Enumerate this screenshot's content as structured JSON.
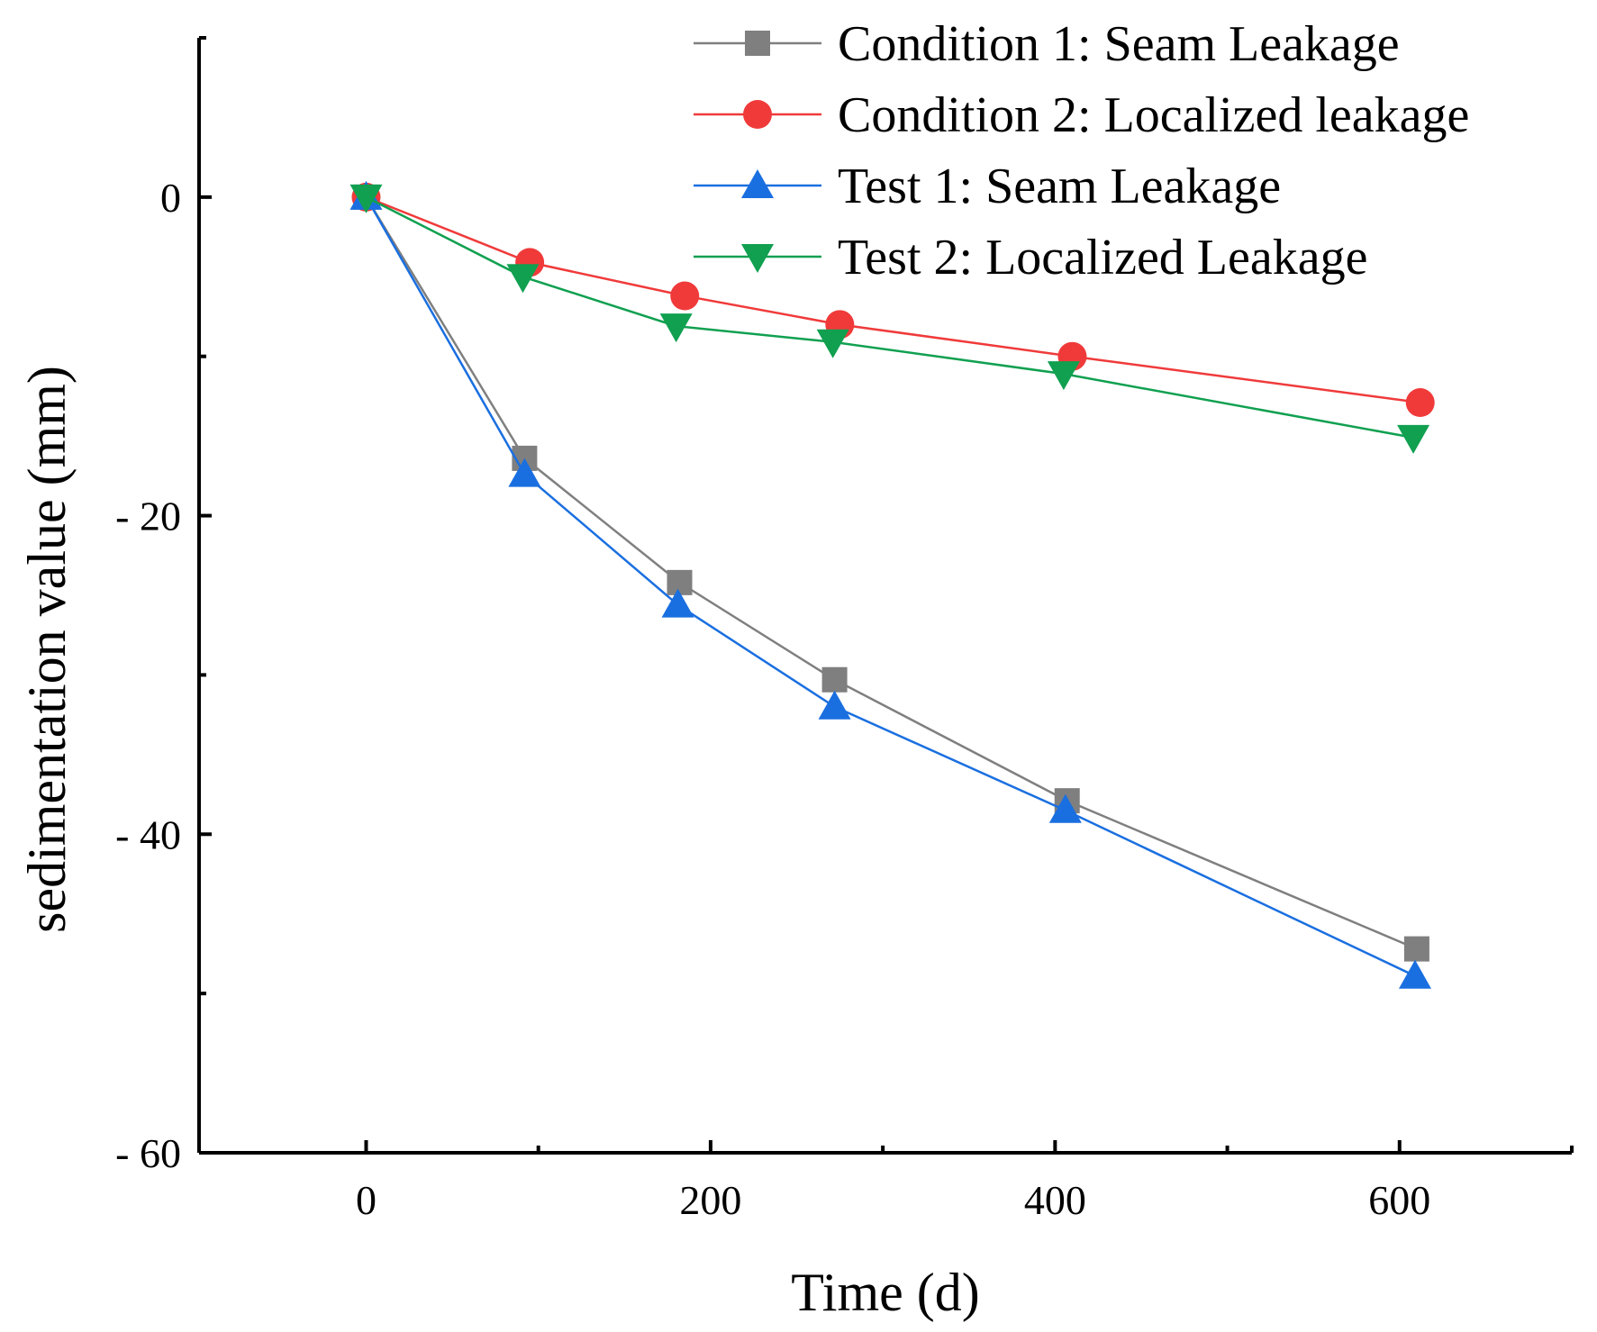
{
  "chart_data": {
    "type": "line",
    "title": "",
    "xlabel": "Time (d)",
    "ylabel": "sedimentation value (mm)",
    "xlim": [
      -97,
      700
    ],
    "ylim": [
      -60,
      10
    ],
    "x_ticks": [
      0,
      200,
      400,
      600
    ],
    "x_tick_labels": [
      "0",
      "200",
      "400",
      "600"
    ],
    "y_ticks": [
      0,
      -20,
      -40,
      -60
    ],
    "y_tick_labels": [
      "0",
      "- 20",
      "- 40",
      "- 60"
    ],
    "grid": false,
    "legend_position": "top-right",
    "series": [
      {
        "name": "Condition 1: Seam Leakage",
        "color": "#7f7f7f",
        "marker": "square",
        "x": [
          0,
          92,
          182,
          272,
          407,
          610
        ],
        "y": [
          0,
          -16.4,
          -24.2,
          -30.3,
          -37.9,
          -47.2
        ]
      },
      {
        "name": "Condition 2: Localized leakage",
        "color": "#f03a3a",
        "marker": "circle",
        "x": [
          0,
          95,
          185,
          275,
          410,
          612
        ],
        "y": [
          0,
          -4.1,
          -6.2,
          -8.0,
          -10.0,
          -12.9
        ]
      },
      {
        "name": "Test 1: Seam Leakage",
        "color": "#1a6fe0",
        "marker": "triangle-up",
        "x": [
          0,
          92,
          181,
          272,
          406,
          609
        ],
        "y": [
          0,
          -17.4,
          -25.6,
          -32.0,
          -38.5,
          -48.9
        ]
      },
      {
        "name": "Test 2: Localized Leakage",
        "color": "#10a050",
        "marker": "triangle-down",
        "x": [
          0,
          91,
          180,
          271,
          405,
          608
        ],
        "y": [
          0,
          -5.0,
          -8.1,
          -9.1,
          -11.1,
          -15.1
        ]
      }
    ]
  }
}
